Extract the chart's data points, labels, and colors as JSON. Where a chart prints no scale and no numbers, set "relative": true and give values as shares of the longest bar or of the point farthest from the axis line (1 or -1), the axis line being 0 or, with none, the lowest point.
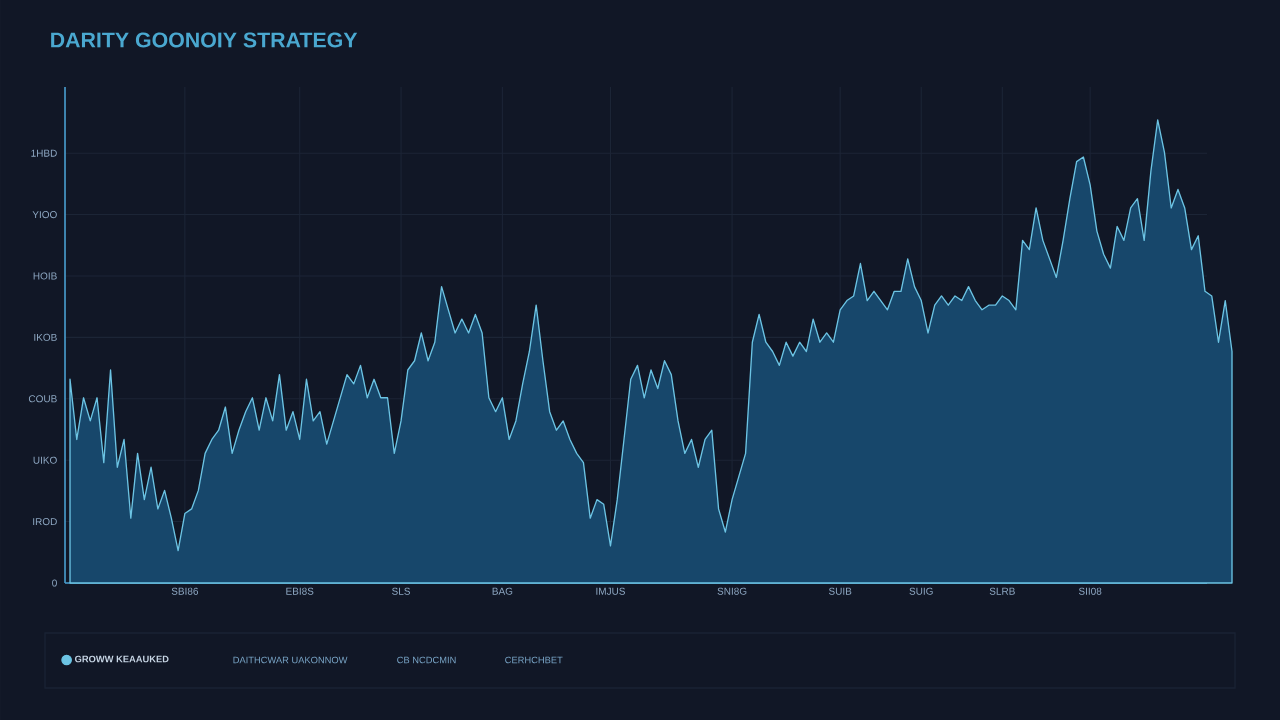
{
  "chart_data": {
    "type": "area",
    "title": "DARITY GOONOIY STRATEGY",
    "relative": true,
    "categories": [
      null,
      null,
      null,
      null,
      null,
      null,
      null,
      null,
      null,
      null,
      null,
      null,
      null,
      null,
      null,
      null,
      null,
      "SBI86",
      null,
      null,
      null,
      null,
      null,
      null,
      null,
      null,
      null,
      null,
      null,
      null,
      null,
      null,
      null,
      null,
      "EBI8S",
      null,
      null,
      null,
      null,
      null,
      null,
      null,
      null,
      null,
      null,
      null,
      null,
      null,
      null,
      "SLS",
      null,
      null,
      null,
      null,
      null,
      null,
      null,
      null,
      null,
      null,
      null,
      null,
      null,
      null,
      "BAG",
      null,
      null,
      null,
      null,
      null,
      null,
      null,
      null,
      null,
      null,
      null,
      null,
      null,
      null,
      null,
      "IMJUS",
      null,
      null,
      null,
      null,
      null,
      null,
      null,
      null,
      null,
      null,
      null,
      null,
      null,
      null,
      null,
      null,
      null,
      "SNI8G",
      null,
      null,
      null,
      null,
      null,
      null,
      null,
      null,
      null,
      null,
      null,
      null,
      null,
      null,
      null,
      "SUIB",
      null,
      null,
      null,
      null,
      null,
      null,
      null,
      null,
      null,
      null,
      null,
      "SUIG",
      null,
      null,
      null,
      null,
      null,
      null,
      null,
      null,
      null,
      null,
      null,
      "SLRB",
      null,
      null,
      null,
      null,
      null,
      null,
      null,
      null,
      null,
      null,
      null,
      null,
      "SII08",
      null,
      null,
      null,
      null,
      null,
      null,
      null,
      null,
      null,
      null,
      null,
      null,
      null,
      null,
      null,
      null,
      null,
      null,
      null,
      null,
      null
    ],
    "series": [
      {
        "name": "GROWW KEAAUKED",
        "color": "#6cc4e4",
        "values": [
          0.44,
          0.31,
          0.4,
          0.35,
          0.4,
          0.26,
          0.46,
          0.25,
          0.31,
          0.14,
          0.28,
          0.18,
          0.25,
          0.16,
          0.2,
          0.14,
          0.07,
          0.15,
          0.16,
          0.2,
          0.28,
          0.31,
          0.33,
          0.38,
          0.28,
          0.33,
          0.37,
          0.4,
          0.33,
          0.4,
          0.35,
          0.45,
          0.33,
          0.37,
          0.31,
          0.44,
          0.35,
          0.37,
          0.3,
          0.35,
          0.4,
          0.45,
          0.43,
          0.47,
          0.4,
          0.44,
          0.4,
          0.4,
          0.28,
          0.35,
          0.46,
          0.48,
          0.54,
          0.48,
          0.52,
          0.64,
          0.59,
          0.54,
          0.57,
          0.54,
          0.58,
          0.54,
          0.4,
          0.37,
          0.4,
          0.31,
          0.35,
          0.43,
          0.5,
          0.6,
          0.48,
          0.37,
          0.33,
          0.35,
          0.31,
          0.28,
          0.26,
          0.14,
          0.18,
          0.17,
          0.08,
          0.18,
          0.31,
          0.44,
          0.47,
          0.4,
          0.46,
          0.42,
          0.48,
          0.45,
          0.35,
          0.28,
          0.31,
          0.25,
          0.31,
          0.33,
          0.16,
          0.11,
          0.18,
          0.23,
          0.28,
          0.52,
          0.58,
          0.52,
          0.5,
          0.47,
          0.52,
          0.49,
          0.52,
          0.5,
          0.57,
          0.52,
          0.54,
          0.52,
          0.59,
          0.61,
          0.62,
          0.69,
          0.61,
          0.63,
          0.61,
          0.59,
          0.63,
          0.63,
          0.7,
          0.64,
          0.61,
          0.54,
          0.6,
          0.62,
          0.6,
          0.62,
          0.61,
          0.64,
          0.61,
          0.59,
          0.6,
          0.6,
          0.62,
          0.61,
          0.59,
          0.74,
          0.72,
          0.81,
          0.74,
          0.7,
          0.66,
          0.74,
          0.83,
          0.91,
          0.92,
          0.86,
          0.76,
          0.71,
          0.68,
          0.77,
          0.74,
          0.81,
          0.83,
          0.74,
          0.89,
          1,
          0.93,
          0.81,
          0.85,
          0.81,
          0.72,
          0.75,
          0.63,
          0.62,
          0.52,
          0.61,
          0.5
        ]
      }
    ],
    "grid": true,
    "legend": "bottom",
    "annotations": [
      "0",
      "IROD",
      "UIKO",
      "COUB",
      "IKOB",
      "HOIB",
      "YIOO",
      "1HBD",
      "DAITHCWAR UAKONNOW",
      "CB NCDCMIN",
      "CERHCHBET"
    ]
  }
}
